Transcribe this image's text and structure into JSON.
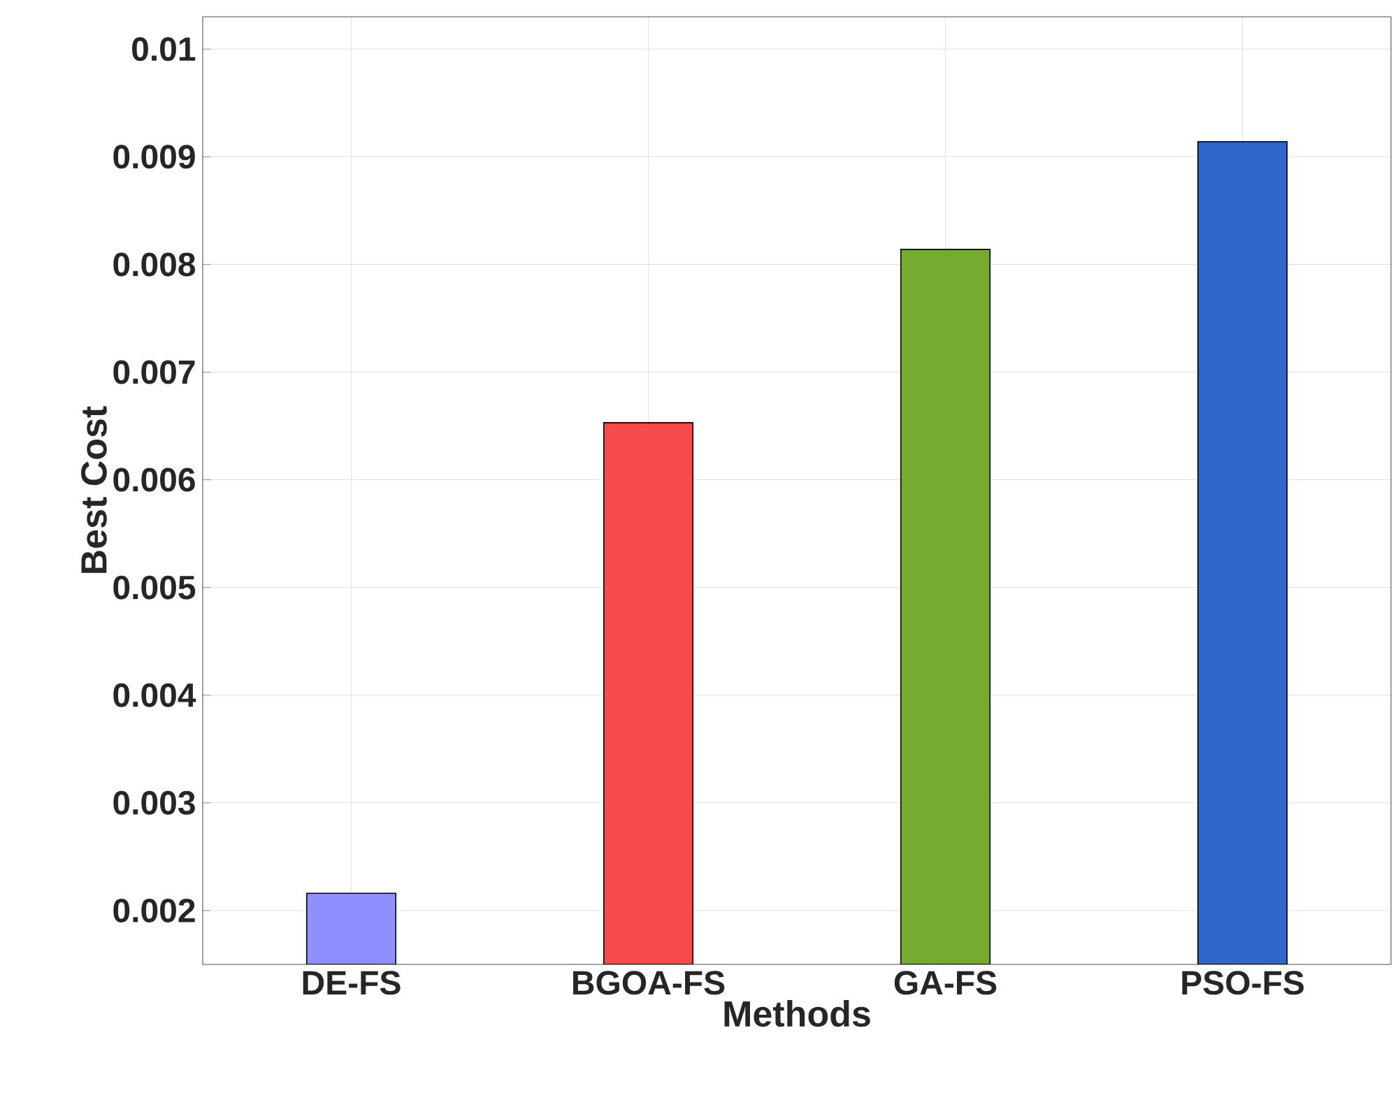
{
  "chart_data": {
    "type": "bar",
    "xlabel": "Methods",
    "ylabel": "Best Cost",
    "categories": [
      "DE-FS",
      "BGOA-FS",
      "GA-FS",
      "PSO-FS"
    ],
    "values": [
      0.00216,
      0.00653,
      0.00814,
      0.00914
    ],
    "colors": [
      "#8f8fff",
      "#f74b4b",
      "#77ab2f",
      "#3066c9"
    ],
    "ylim": [
      0.0015,
      0.0103
    ],
    "yticks": [
      0.002,
      0.003,
      0.004,
      0.005,
      0.006,
      0.007,
      0.008,
      0.009,
      0.01
    ],
    "grid": true
  }
}
